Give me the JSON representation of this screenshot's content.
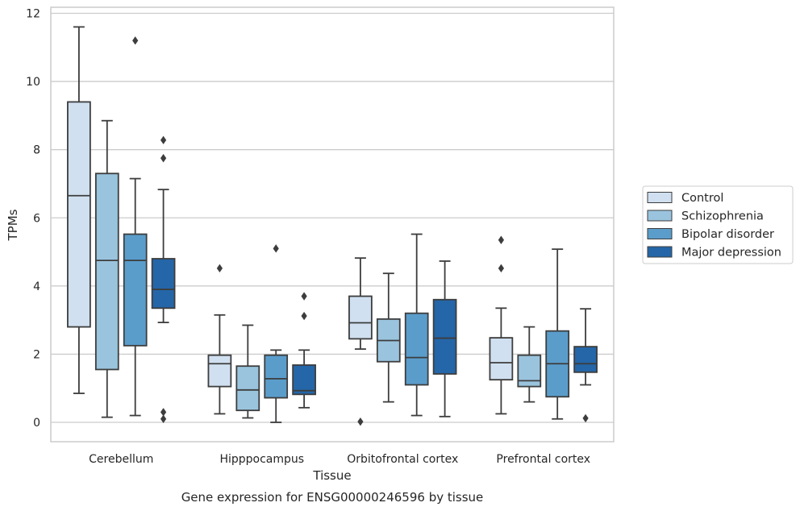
{
  "chart_data": {
    "type": "box",
    "xlabel": "Tissue",
    "ylabel": "TPMs",
    "caption": "Gene expression for ENSG00000246596 by tissue",
    "ylim": [
      -0.55,
      12.2
    ],
    "yticks": [
      0,
      2,
      4,
      6,
      8,
      10,
      12
    ],
    "grid": true,
    "legend_position": "right",
    "categories": [
      "Cerebellum",
      "Hipppocampus",
      "Orbitofrontal cortex",
      "Prefrontal cortex"
    ],
    "series": [
      {
        "name": "Control",
        "color": "#d0e0f0",
        "boxes": [
          {
            "whislo": 0.85,
            "q1": 2.8,
            "med": 6.65,
            "q3": 9.4,
            "whishi": 11.6,
            "fliers": []
          },
          {
            "whislo": 0.25,
            "q1": 1.05,
            "med": 1.72,
            "q3": 1.97,
            "whishi": 3.15,
            "fliers": [
              4.52
            ]
          },
          {
            "whislo": 2.15,
            "q1": 2.45,
            "med": 2.92,
            "q3": 3.7,
            "whishi": 4.82,
            "fliers": [
              0.02
            ]
          },
          {
            "whislo": 0.25,
            "q1": 1.25,
            "med": 1.75,
            "q3": 2.48,
            "whishi": 3.35,
            "fliers": [
              4.52,
              5.35
            ]
          }
        ]
      },
      {
        "name": "Schizophrenia",
        "color": "#9ac4de",
        "boxes": [
          {
            "whislo": 0.15,
            "q1": 1.55,
            "med": 4.75,
            "q3": 7.3,
            "whishi": 8.85,
            "fliers": []
          },
          {
            "whislo": 0.13,
            "q1": 0.35,
            "med": 0.95,
            "q3": 1.65,
            "whishi": 2.85,
            "fliers": []
          },
          {
            "whislo": 0.6,
            "q1": 1.78,
            "med": 2.4,
            "q3": 3.03,
            "whishi": 4.37,
            "fliers": []
          },
          {
            "whislo": 0.6,
            "q1": 1.05,
            "med": 1.22,
            "q3": 1.97,
            "whishi": 2.8,
            "fliers": []
          }
        ]
      },
      {
        "name": "Bipolar disorder",
        "color": "#5a9dcb",
        "boxes": [
          {
            "whislo": 0.2,
            "q1": 2.25,
            "med": 4.75,
            "q3": 5.52,
            "whishi": 7.15,
            "fliers": [
              11.2
            ]
          },
          {
            "whislo": 0.0,
            "q1": 0.72,
            "med": 1.28,
            "q3": 1.97,
            "whishi": 2.12,
            "fliers": [
              5.1
            ]
          },
          {
            "whislo": 0.2,
            "q1": 1.1,
            "med": 1.9,
            "q3": 3.2,
            "whishi": 5.52,
            "fliers": []
          },
          {
            "whislo": 0.1,
            "q1": 0.75,
            "med": 1.72,
            "q3": 2.68,
            "whishi": 5.08,
            "fliers": []
          }
        ]
      },
      {
        "name": "Major depression",
        "color": "#2466a8",
        "boxes": [
          {
            "whislo": 2.93,
            "q1": 3.35,
            "med": 3.9,
            "q3": 4.8,
            "whishi": 6.83,
            "fliers": [
              0.1,
              0.3,
              7.75,
              8.28
            ]
          },
          {
            "whislo": 0.43,
            "q1": 0.82,
            "med": 0.93,
            "q3": 1.68,
            "whishi": 2.12,
            "fliers": [
              3.12,
              3.7
            ]
          },
          {
            "whislo": 0.17,
            "q1": 1.42,
            "med": 2.47,
            "q3": 3.6,
            "whishi": 4.73,
            "fliers": []
          },
          {
            "whislo": 1.1,
            "q1": 1.47,
            "med": 1.72,
            "q3": 2.22,
            "whishi": 3.33,
            "fliers": [
              0.12
            ]
          }
        ]
      }
    ]
  }
}
